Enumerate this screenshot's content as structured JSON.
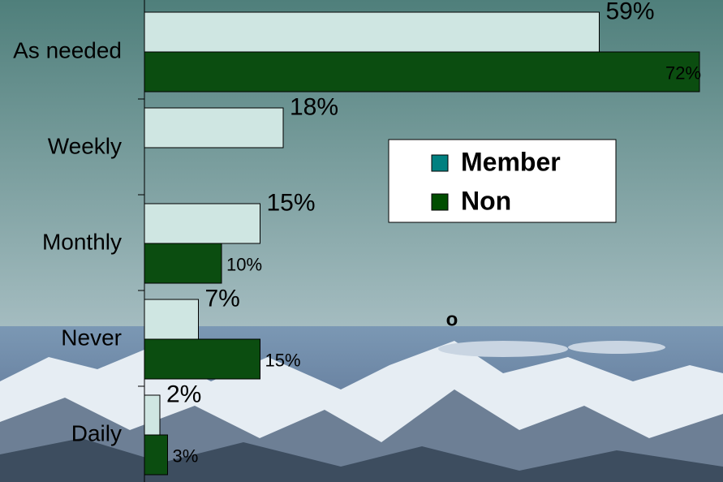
{
  "chart_data": {
    "type": "barh",
    "categories": [
      "As needed",
      "Weekly",
      "Monthly",
      "Never",
      "Daily"
    ],
    "series": [
      {
        "name": "Member",
        "color": "#008080",
        "bar_color": "#cfe6e2",
        "values": [
          59,
          18,
          15,
          7,
          2
        ],
        "value_labels": [
          "59%",
          "18%",
          "15%",
          "7%",
          "2%"
        ]
      },
      {
        "name": "Non",
        "color": "#004d00",
        "bar_color": "#0b4d10",
        "values": [
          72,
          null,
          10,
          15,
          3
        ],
        "value_labels": [
          "72%",
          null,
          "10%",
          "15%",
          "3%"
        ]
      }
    ],
    "xlim": [
      0,
      75
    ],
    "annotation": "o"
  }
}
